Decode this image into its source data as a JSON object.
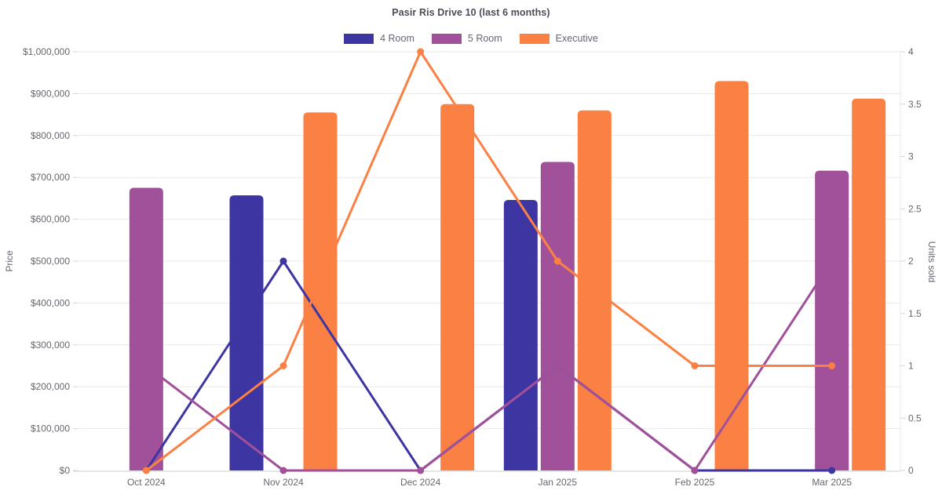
{
  "chart_data": {
    "type": "combo-bar-line",
    "title": "Pasir Ris Drive 10 (last 6 months)",
    "categories": [
      "Oct 2024",
      "Nov 2024",
      "Dec 2024",
      "Jan 2025",
      "Feb 2025",
      "Mar 2025"
    ],
    "series": [
      {
        "name": "4 Room",
        "type": "bar",
        "axis": "left",
        "color": "#3d35a2",
        "values": [
          null,
          657000,
          null,
          646000,
          null,
          null
        ]
      },
      {
        "name": "5 Room",
        "type": "bar",
        "axis": "left",
        "color": "#a0519a",
        "values": [
          675000,
          null,
          null,
          737000,
          null,
          716000
        ]
      },
      {
        "name": "Executive",
        "type": "bar",
        "axis": "left",
        "color": "#fb8043",
        "values": [
          null,
          855000,
          875000,
          860000,
          930000,
          888000
        ]
      },
      {
        "name": "4 Room",
        "type": "line",
        "axis": "right",
        "color": "#3d35a2",
        "values": [
          0,
          2,
          0,
          1,
          0,
          0
        ]
      },
      {
        "name": "5 Room",
        "type": "line",
        "axis": "right",
        "color": "#a0519a",
        "values": [
          1,
          0,
          0,
          1,
          0,
          2
        ]
      },
      {
        "name": "Executive",
        "type": "line",
        "axis": "right",
        "color": "#fb8043",
        "values": [
          0,
          1,
          4,
          2,
          1,
          1
        ]
      }
    ],
    "xlabel": "",
    "ylabel_left": "Price",
    "ylabel_right": "Units sold",
    "ylim_left": [
      0,
      1000000
    ],
    "ytick_step_left": 100000,
    "left_tick_labels": [
      "$0",
      "$100,000",
      "$200,000",
      "$300,000",
      "$400,000",
      "$500,000",
      "$600,000",
      "$700,000",
      "$800,000",
      "$900,000",
      "$1,000,000"
    ],
    "ylim_right": [
      0,
      4
    ],
    "ytick_step_right": 0.5,
    "right_tick_labels": [
      "0",
      "0.5",
      "1",
      "1.5",
      "2",
      "2.5",
      "3",
      "3.5",
      "4"
    ],
    "grid": true,
    "legend": {
      "position": "top",
      "items": [
        {
          "label": "4 Room",
          "color": "#3d35a2"
        },
        {
          "label": "5 Room",
          "color": "#a0519a"
        },
        {
          "label": "Executive",
          "color": "#fb8043"
        }
      ]
    }
  },
  "colors": {
    "series_4_room": "#3d35a2",
    "series_5_room": "#a0519a",
    "series_executive": "#fb8043",
    "gridline": "#e9e9ec",
    "axis_line": "#d6d6db",
    "tick_text": "#66666e",
    "title_text": "#4c4c57",
    "background": "#ffffff"
  }
}
